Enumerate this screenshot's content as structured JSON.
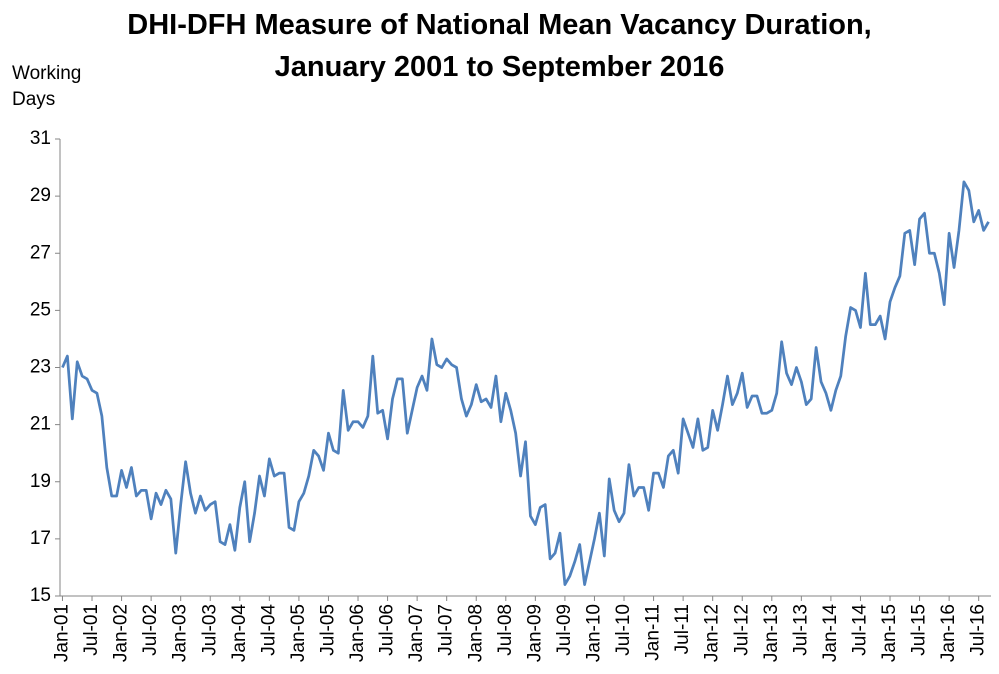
{
  "chart_data": {
    "type": "line",
    "title_line1": "DHI-DFH Measure of National Mean Vacancy Duration,",
    "title_line2": "January 2001 to September 2016",
    "ylabel_line1": "Working",
    "ylabel_line2": "Days",
    "xlabel": "",
    "ylim": [
      15,
      31
    ],
    "y_ticks": [
      15,
      17,
      19,
      21,
      23,
      25,
      27,
      29,
      31
    ],
    "x_tick_labels": [
      "Jan-01",
      "Jul-01",
      "Jan-02",
      "Jul-02",
      "Jan-03",
      "Jul-03",
      "Jan-04",
      "Jul-04",
      "Jan-05",
      "Jul-05",
      "Jan-06",
      "Jul-06",
      "Jan-07",
      "Jul-07",
      "Jan-08",
      "Jul-08",
      "Jan-09",
      "Jul-09",
      "Jan-10",
      "Jul-10",
      "Jan-11",
      "Jul-11",
      "Jan-12",
      "Jul-12",
      "Jan-13",
      "Jul-13",
      "Jan-14",
      "Jul-14",
      "Jan-15",
      "Jul-15",
      "Jan-16",
      "Jul-16"
    ],
    "x_start": "Jan-01",
    "x_end": "Sep-16",
    "grid": false,
    "legend": "none",
    "series": [
      {
        "color": "#4f81bd",
        "values": [
          23.0,
          23.4,
          21.2,
          23.2,
          22.7,
          22.6,
          22.2,
          22.1,
          21.3,
          19.5,
          18.5,
          18.5,
          19.4,
          18.8,
          19.5,
          18.5,
          18.7,
          18.7,
          17.7,
          18.6,
          18.2,
          18.7,
          18.4,
          16.5,
          18.2,
          19.7,
          18.6,
          17.9,
          18.5,
          18.0,
          18.2,
          18.3,
          16.9,
          16.8,
          17.5,
          16.6,
          18.1,
          19.0,
          16.9,
          17.9,
          19.2,
          18.5,
          19.8,
          19.2,
          19.3,
          19.3,
          17.4,
          17.3,
          18.3,
          18.6,
          19.2,
          20.1,
          19.9,
          19.4,
          20.7,
          20.1,
          20.0,
          22.2,
          20.8,
          21.1,
          21.1,
          20.9,
          21.3,
          23.4,
          21.4,
          21.5,
          20.5,
          21.9,
          22.6,
          22.6,
          20.7,
          21.5,
          22.3,
          22.7,
          22.2,
          24.0,
          23.1,
          23.0,
          23.3,
          23.1,
          23.0,
          21.9,
          21.3,
          21.7,
          22.4,
          21.8,
          21.9,
          21.6,
          22.7,
          21.1,
          22.1,
          21.5,
          20.7,
          19.2,
          20.4,
          17.8,
          17.5,
          18.1,
          18.2,
          16.3,
          16.5,
          17.2,
          15.4,
          15.7,
          16.2,
          16.8,
          15.4,
          16.2,
          17.0,
          17.9,
          16.4,
          19.1,
          18.0,
          17.6,
          17.9,
          19.6,
          18.5,
          18.8,
          18.8,
          18.0,
          19.3,
          19.3,
          18.8,
          19.9,
          20.1,
          19.3,
          21.2,
          20.7,
          20.2,
          21.2,
          20.1,
          20.2,
          21.5,
          20.8,
          21.7,
          22.7,
          21.7,
          22.1,
          22.8,
          21.6,
          22.0,
          22.0,
          21.4,
          21.4,
          21.5,
          22.1,
          23.9,
          22.8,
          22.4,
          23.0,
          22.5,
          21.7,
          21.9,
          23.7,
          22.5,
          22.1,
          21.5,
          22.2,
          22.7,
          24.1,
          25.1,
          25.0,
          24.4,
          26.3,
          24.5,
          24.5,
          24.8,
          24.0,
          25.3,
          25.8,
          26.2,
          27.7,
          27.8,
          26.6,
          28.2,
          28.4,
          27.0,
          27.0,
          26.3,
          25.2,
          27.7,
          26.5,
          27.8,
          29.5,
          29.2,
          28.1,
          28.5,
          27.8,
          28.1
        ]
      }
    ]
  }
}
